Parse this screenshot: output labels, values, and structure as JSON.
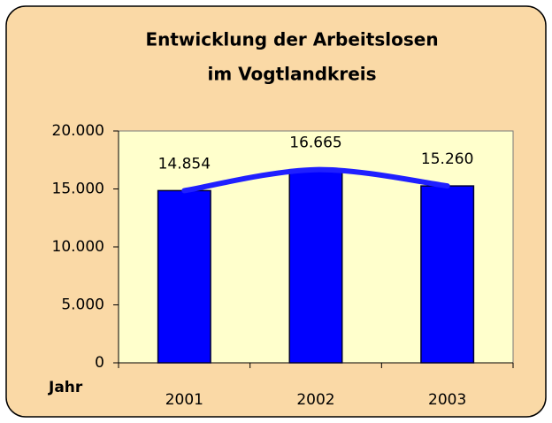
{
  "chart_data": {
    "type": "bar",
    "title": [
      "Entwicklung der Arbeitslosen",
      "im Vogtlandkreis"
    ],
    "x_label": "Jahr",
    "categories": [
      "2001",
      "2002",
      "2003"
    ],
    "values": [
      14854,
      16665,
      15260
    ],
    "value_labels": [
      "14.854",
      "16.665",
      "15.260"
    ],
    "color": "#0000ff",
    "line_color": "#1f1fff",
    "ylim": [
      0,
      20000
    ],
    "yticks": [
      {
        "value": 0,
        "label": "0"
      },
      {
        "value": 5000,
        "label": "5.000"
      },
      {
        "value": 10000,
        "label": "10.000"
      },
      {
        "value": 15000,
        "label": "15.000"
      },
      {
        "value": 20000,
        "label": "20.000"
      }
    ],
    "grid": false
  }
}
